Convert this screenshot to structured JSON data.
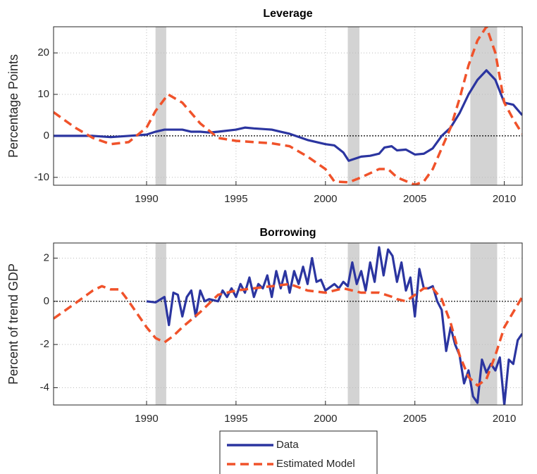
{
  "chart_data": [
    {
      "type": "line",
      "title": "Leverage",
      "y_label": "Percentage Points",
      "xlim": [
        1984.8,
        2011
      ],
      "ylim": [
        -11.9,
        26.3
      ],
      "xticks": [
        1990,
        1995,
        2000,
        2005,
        2010
      ],
      "yticks": [
        -10,
        0,
        10,
        20
      ],
      "grid": true,
      "zero_line": 0,
      "shading": [
        [
          1990.5,
          1991.1
        ],
        [
          2001.25,
          2001.9
        ],
        [
          2008.1,
          2009.6
        ]
      ],
      "shading_color": "#d3d3d3",
      "series": [
        {
          "color": "#2b35a0",
          "dash": false,
          "x": [
            1984.8,
            1987,
            1988,
            1989,
            1990,
            1990.5,
            1991,
            1991.5,
            1992,
            1992.5,
            1993,
            1993.5,
            1994,
            1995,
            1995.5,
            1996,
            1997,
            1997.5,
            1998,
            1999,
            2000,
            2000.5,
            2001,
            2001.3,
            2002,
            2002.5,
            2003,
            2003.3,
            2003.7,
            2004,
            2004.5,
            2005,
            2005.5,
            2006,
            2006.5,
            2007,
            2007.5,
            2008,
            2008.5,
            2009,
            2009.5,
            2010,
            2010.5,
            2011
          ],
          "values": [
            0,
            0,
            -0.3,
            0,
            0.3,
            1.0,
            1.5,
            1.5,
            1.5,
            1.0,
            1.0,
            0.8,
            1.0,
            1.5,
            2,
            1.8,
            1.5,
            1.0,
            0.5,
            -1,
            -2,
            -2.3,
            -4,
            -6,
            -5,
            -4.8,
            -4.3,
            -2.8,
            -2.5,
            -3.5,
            -3.3,
            -4.5,
            -4.3,
            -3,
            0,
            2,
            5.5,
            10,
            13.5,
            15.8,
            13.5,
            8,
            7.5,
            5
          ]
        },
        {
          "color": "#f0522a",
          "dash": true,
          "x": [
            1984.8,
            1986,
            1987,
            1988,
            1989,
            1990,
            1990.5,
            1991.2,
            1992,
            1993,
            1994,
            1995,
            1996,
            1997,
            1998,
            1999,
            2000,
            2000.5,
            2001.3,
            2002,
            2003,
            2003.5,
            2004,
            2005,
            2005.5,
            2006,
            2006.5,
            2007,
            2007.5,
            2008,
            2008.5,
            2009,
            2009.5,
            2010,
            2010.5,
            2011
          ],
          "values": [
            5.7,
            2,
            -0.5,
            -2,
            -1.5,
            2,
            6,
            10,
            8,
            3,
            -0.5,
            -1.2,
            -1.5,
            -1.8,
            -2.5,
            -5,
            -8,
            -11,
            -11.2,
            -10,
            -8,
            -8,
            -10,
            -11.8,
            -11,
            -8,
            -3,
            2,
            9,
            17,
            23,
            26.3,
            20,
            8,
            4,
            0.5
          ]
        }
      ]
    },
    {
      "type": "line",
      "title": "Borrowing",
      "y_label": "Percent of trend GDP",
      "xlim": [
        1984.8,
        2011
      ],
      "ylim": [
        -4.8,
        2.7
      ],
      "xticks": [
        1990,
        1995,
        2000,
        2005,
        2010
      ],
      "yticks": [
        -4,
        -2,
        0,
        2
      ],
      "grid": true,
      "zero_line": 0,
      "shading": [
        [
          1990.5,
          1991.1
        ],
        [
          2001.25,
          2001.9
        ],
        [
          2008.1,
          2009.6
        ]
      ],
      "shading_color": "#d3d3d3",
      "series": [
        {
          "name": "Data",
          "color": "#2b35a0",
          "dash": false,
          "x": [
            1990,
            1990.5,
            1991,
            1991.25,
            1991.5,
            1991.75,
            1992,
            1992.25,
            1992.5,
            1992.75,
            1993,
            1993.25,
            1993.5,
            1994,
            1994.25,
            1994.5,
            1994.75,
            1995,
            1995.25,
            1995.5,
            1995.75,
            1996,
            1996.25,
            1996.5,
            1996.75,
            1997,
            1997.25,
            1997.5,
            1997.75,
            1998,
            1998.25,
            1998.5,
            1998.75,
            1999,
            1999.25,
            1999.5,
            1999.75,
            2000,
            2000.5,
            2000.75,
            2001,
            2001.25,
            2001.5,
            2001.75,
            2002,
            2002.25,
            2002.5,
            2002.75,
            2003,
            2003.25,
            2003.5,
            2003.75,
            2004,
            2004.25,
            2004.5,
            2004.75,
            2005,
            2005.25,
            2005.5,
            2005.75,
            2006,
            2006.25,
            2006.5,
            2006.75,
            2007,
            2007.25,
            2007.5,
            2007.75,
            2008,
            2008.25,
            2008.5,
            2008.75,
            2009,
            2009.25,
            2009.5,
            2009.75,
            2010,
            2010.25,
            2010.5,
            2010.75,
            2011
          ],
          "values": [
            0,
            -0.05,
            0.2,
            -1.1,
            0.4,
            0.3,
            -0.7,
            0.2,
            0.5,
            -0.7,
            0.5,
            0,
            0.1,
            0,
            0.5,
            0.2,
            0.6,
            0.2,
            0.8,
            0.4,
            1.1,
            0.2,
            0.8,
            0.6,
            1.2,
            0.2,
            1.4,
            0.6,
            1.4,
            0.4,
            1.4,
            0.8,
            1.6,
            0.8,
            2.0,
            0.9,
            1.0,
            0.5,
            0.8,
            0.6,
            0.9,
            0.7,
            1.8,
            0.8,
            1.4,
            0.5,
            1.8,
            0.9,
            2.5,
            1.2,
            2.4,
            2.1,
            0.9,
            1.8,
            0.5,
            1.1,
            -0.7,
            1.5,
            0.6,
            0.6,
            0.7,
            0,
            -0.4,
            -2.3,
            -1.2,
            -2,
            -2.5,
            -3.8,
            -3.2,
            -4.4,
            -4.7,
            -2.7,
            -3.3,
            -2.9,
            -3.2,
            -2.6,
            -4.8,
            -2.7,
            -2.9,
            -1.8,
            -1.5
          ]
        },
        {
          "name": "Estimated Model",
          "color": "#f0522a",
          "dash": true,
          "x": [
            1984.8,
            1986,
            1987,
            1987.5,
            1988,
            1988.5,
            1989,
            1989.5,
            1990,
            1990.5,
            1991,
            1991.5,
            1992,
            1993,
            1994,
            1995,
            1996,
            1997,
            1998,
            1999,
            2000,
            2001,
            2002,
            2003,
            2003.75,
            2004,
            2004.5,
            2005,
            2005.5,
            2006,
            2006.5,
            2007,
            2007.5,
            2008,
            2008.5,
            2009,
            2009.5,
            2010,
            2010.5,
            2011
          ],
          "values": [
            -0.8,
            -0.1,
            0.5,
            0.7,
            0.55,
            0.55,
            0,
            -0.6,
            -1.2,
            -1.7,
            -1.9,
            -1.6,
            -1.2,
            -0.5,
            0.3,
            0.5,
            0.6,
            0.7,
            0.8,
            0.5,
            0.4,
            0.6,
            0.4,
            0.4,
            0.2,
            0.1,
            0,
            0.3,
            0.6,
            0.6,
            0.1,
            -1,
            -2.5,
            -3.5,
            -3.9,
            -3.6,
            -2.5,
            -1.2,
            -0.5,
            0.2
          ]
        }
      ]
    }
  ]
}
